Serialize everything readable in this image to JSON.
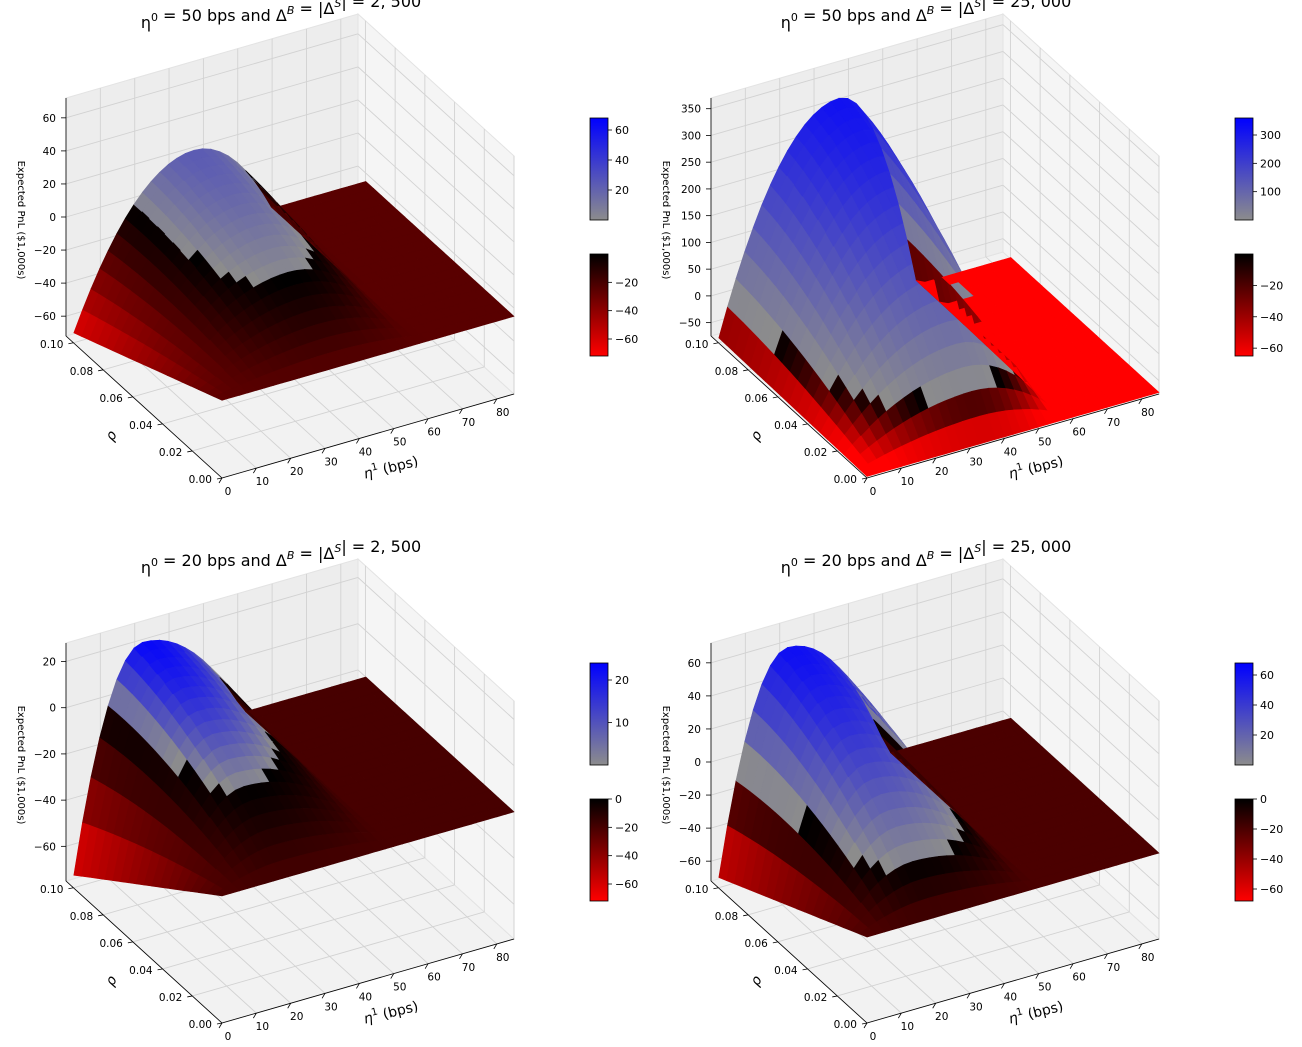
{
  "figure": {
    "panel_count": 4,
    "chart_type": "3D surface"
  },
  "chart_data": [
    {
      "type": "surface3d",
      "title_parts": {
        "eta0": "50",
        "delta": "2, 500"
      },
      "title": "η⁰ = 50 bps and Δ^B = |Δ^S| = 2, 500",
      "xlabel": "η¹ (bps)",
      "ylabel": "ρ",
      "zlabel": "Expected PnL ($1,000s)",
      "x_ticks": [
        "0",
        "10",
        "20",
        "30",
        "40",
        "50",
        "60",
        "70",
        "80"
      ],
      "y_ticks": [
        "0.00",
        "0.02",
        "0.04",
        "0.06",
        "0.08",
        "0.10"
      ],
      "z_ticks": [
        "−60",
        "−40",
        "−20",
        "0",
        "20",
        "40",
        "60"
      ],
      "xlim": [
        0,
        85
      ],
      "ylim": [
        0,
        0.105
      ],
      "zlim": [
        -72,
        72
      ],
      "peak": {
        "z": 24,
        "eta1": 35
      },
      "min_z_corner": -68,
      "plateau_z": -25,
      "colorbar_pos": {
        "ticks": [
          "60",
          "40",
          "20"
        ],
        "min": 0,
        "max": 68
      },
      "colorbar_neg": {
        "ticks": [
          "−20",
          "−40",
          "−60"
        ],
        "min": -72,
        "max": 0
      }
    },
    {
      "type": "surface3d",
      "title_parts": {
        "eta0": "50",
        "delta": "25, 000"
      },
      "title": "η⁰ = 50 bps and Δ^B = |Δ^S| = 25, 000",
      "xlabel": "η¹ (bps)",
      "ylabel": "ρ",
      "zlabel": "Expected PnL ($1,000s)",
      "x_ticks": [
        "0",
        "10",
        "20",
        "30",
        "40",
        "50",
        "60",
        "70",
        "80"
      ],
      "y_ticks": [
        "0.00",
        "0.02",
        "0.04",
        "0.06",
        "0.08",
        "0.10"
      ],
      "z_ticks": [
        "−50",
        "0",
        "50",
        "100",
        "150",
        "200",
        "250",
        "300",
        "350"
      ],
      "xlim": [
        0,
        85
      ],
      "ylim": [
        0,
        0.105
      ],
      "zlim": [
        -75,
        370
      ],
      "peak": {
        "z": 320,
        "eta1": 35
      },
      "min_z_corner": -65,
      "plateau_z": -72,
      "colorbar_pos": {
        "ticks": [
          "300",
          "200",
          "100"
        ],
        "min": 0,
        "max": 360
      },
      "colorbar_neg": {
        "ticks": [
          "−20",
          "−40",
          "−60"
        ],
        "min": -65,
        "max": 0
      }
    },
    {
      "type": "surface3d",
      "title_parts": {
        "eta0": "20",
        "delta": "2, 500"
      },
      "title": "η⁰ = 20 bps and Δ^B = |Δ^S| = 2, 500",
      "xlabel": "η¹ (bps)",
      "ylabel": "ρ",
      "zlabel": "Expected PnL ($1,000s)",
      "x_ticks": [
        "0",
        "10",
        "20",
        "30",
        "40",
        "50",
        "60",
        "70",
        "80"
      ],
      "y_ticks": [
        "0.00",
        "0.02",
        "0.04",
        "0.06",
        "0.08",
        "0.10"
      ],
      "z_ticks": [
        "−60",
        "−40",
        "−20",
        "0",
        "20"
      ],
      "xlim": [
        0,
        85
      ],
      "ylim": [
        0,
        0.105
      ],
      "zlim": [
        -75,
        28
      ],
      "peak": {
        "z": 23,
        "eta1": 20
      },
      "min_z_corner": -72,
      "plateau_z": -20,
      "colorbar_pos": {
        "ticks": [
          "20",
          "10"
        ],
        "min": 0,
        "max": 24
      },
      "colorbar_neg": {
        "ticks": [
          "0",
          "−20",
          "−40",
          "−60"
        ],
        "min": -72,
        "max": 0
      }
    },
    {
      "type": "surface3d",
      "title_parts": {
        "eta0": "20",
        "delta": "25, 000"
      },
      "title": "η⁰ = 20 bps and Δ^B = |Δ^S| = 25, 000",
      "xlabel": "η¹ (bps)",
      "ylabel": "ρ",
      "zlabel": "Expected PnL ($1,000s)",
      "x_ticks": [
        "0",
        "10",
        "20",
        "30",
        "40",
        "50",
        "60",
        "70",
        "80"
      ],
      "y_ticks": [
        "0.00",
        "0.02",
        "0.04",
        "0.06",
        "0.08",
        "0.10"
      ],
      "z_ticks": [
        "−60",
        "−40",
        "−20",
        "0",
        "20",
        "40",
        "60"
      ],
      "xlim": [
        0,
        85
      ],
      "ylim": [
        0,
        0.105
      ],
      "zlim": [
        -72,
        72
      ],
      "peak": {
        "z": 62,
        "eta1": 20
      },
      "min_z_corner": -68,
      "plateau_z": -20,
      "colorbar_pos": {
        "ticks": [
          "60",
          "40",
          "20"
        ],
        "min": 0,
        "max": 68
      },
      "colorbar_neg": {
        "ticks": [
          "0",
          "−20",
          "−40",
          "−60"
        ],
        "min": -68,
        "max": 0
      }
    }
  ]
}
